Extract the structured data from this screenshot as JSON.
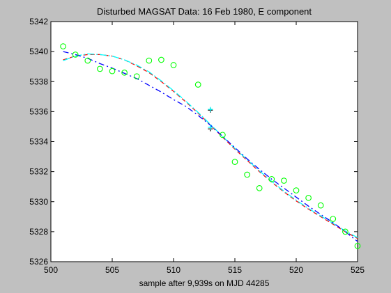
{
  "chart_data": {
    "type": "scatter",
    "title": "Disturbed MAGSAT Data: 16 Feb 1980, E component",
    "xlabel": "sample after 9,939s on MJD 44285",
    "ylabel": "",
    "xlim": [
      500,
      525
    ],
    "ylim": [
      5326,
      5342
    ],
    "x_ticks": [
      500,
      505,
      510,
      515,
      520,
      525
    ],
    "y_ticks": [
      5326,
      5328,
      5330,
      5332,
      5334,
      5336,
      5338,
      5340,
      5342
    ],
    "grid": false,
    "legend": "none",
    "colors": {
      "points": "#00ff00",
      "series_red": "#ff0000",
      "series_blue": "#0000ff",
      "series_cyan": "#00ffff",
      "marker": "#000000"
    },
    "points": [
      {
        "x": 501,
        "y": 5340.35
      },
      {
        "x": 502,
        "y": 5339.8
      },
      {
        "x": 503,
        "y": 5339.4
      },
      {
        "x": 504,
        "y": 5338.85
      },
      {
        "x": 505,
        "y": 5338.7
      },
      {
        "x": 506,
        "y": 5338.6
      },
      {
        "x": 507,
        "y": 5338.35
      },
      {
        "x": 508,
        "y": 5339.4
      },
      {
        "x": 509,
        "y": 5339.45
      },
      {
        "x": 510,
        "y": 5339.1
      },
      {
        "x": 512,
        "y": 5337.8
      },
      {
        "x": 514,
        "y": 5334.45
      },
      {
        "x": 515,
        "y": 5332.65
      },
      {
        "x": 516,
        "y": 5331.8
      },
      {
        "x": 517,
        "y": 5330.9
      },
      {
        "x": 518,
        "y": 5331.5
      },
      {
        "x": 519,
        "y": 5331.4
      },
      {
        "x": 520,
        "y": 5330.75
      },
      {
        "x": 521,
        "y": 5330.25
      },
      {
        "x": 522,
        "y": 5329.75
      },
      {
        "x": 523,
        "y": 5328.85
      },
      {
        "x": 524,
        "y": 5328.0
      },
      {
        "x": 525,
        "y": 5327.05
      }
    ],
    "series": [
      {
        "style": "red-dashed",
        "x": [
          501,
          502,
          503,
          504,
          505,
          506,
          507,
          508,
          509,
          510,
          511,
          512,
          513,
          514,
          515,
          516,
          517,
          518,
          519,
          520,
          521,
          522,
          523,
          524,
          525
        ],
        "values": [
          5339.45,
          5339.7,
          5339.8,
          5339.8,
          5339.7,
          5339.45,
          5339.05,
          5338.6,
          5338.0,
          5337.35,
          5336.65,
          5335.9,
          5335.1,
          5334.3,
          5333.5,
          5332.75,
          5332.0,
          5331.3,
          5330.65,
          5330.05,
          5329.5,
          5329.0,
          5328.5,
          5328.0,
          5327.55
        ]
      },
      {
        "style": "cyan-dashdot",
        "x": [
          501,
          502,
          503,
          504,
          505,
          506,
          507,
          508,
          509,
          510,
          511,
          512,
          513,
          514,
          515,
          516,
          517,
          518,
          519,
          520,
          521,
          522,
          523,
          524,
          525
        ],
        "values": [
          5339.4,
          5339.7,
          5339.85,
          5339.8,
          5339.7,
          5339.45,
          5339.1,
          5338.65,
          5338.05,
          5337.4,
          5336.7,
          5335.95,
          5335.15,
          5334.35,
          5333.55,
          5332.8,
          5332.05,
          5331.35,
          5330.7,
          5330.1,
          5329.55,
          5329.05,
          5328.55,
          5328.05,
          5327.6
        ]
      },
      {
        "style": "blue-dashdot",
        "x": [
          501,
          502,
          503,
          504,
          505,
          506,
          507,
          508,
          509,
          510,
          511,
          512,
          513,
          514,
          515,
          516,
          517,
          518,
          519,
          520,
          521,
          522,
          523,
          524,
          525
        ],
        "values": [
          5340.0,
          5339.8,
          5339.55,
          5339.2,
          5338.9,
          5338.55,
          5338.2,
          5337.75,
          5337.3,
          5336.8,
          5336.35,
          5335.75,
          5335.1,
          5334.35,
          5333.6,
          5332.85,
          5332.15,
          5331.5,
          5330.9,
          5330.3,
          5329.7,
          5329.15,
          5328.6,
          5328.0,
          5327.35
        ]
      }
    ],
    "markers": [
      {
        "symbol": "+",
        "color": "#000000",
        "x": 513,
        "y": 5336.1
      },
      {
        "symbol": "+",
        "color": "#000000",
        "x": 513,
        "y": 5334.85
      },
      {
        "symbol": "+",
        "color": "#00ffff",
        "x": 513,
        "y": 5336.15
      },
      {
        "symbol": "+",
        "color": "#00ffff",
        "x": 513,
        "y": 5334.95
      }
    ]
  }
}
